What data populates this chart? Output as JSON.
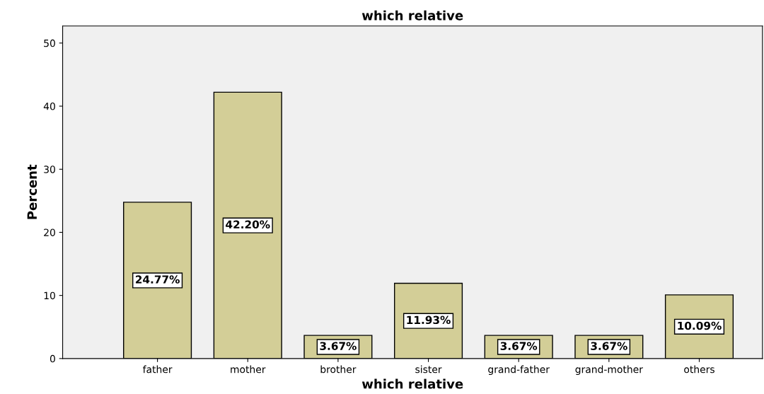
{
  "chart_data": {
    "type": "bar",
    "title": "which relative",
    "xlabel": "which relative",
    "ylabel": "Percent",
    "categories": [
      "father",
      "mother",
      "brother",
      "sister",
      "grand-father",
      "grand-mother",
      "others"
    ],
    "values": [
      24.77,
      42.2,
      3.67,
      11.93,
      3.67,
      3.67,
      10.09
    ],
    "value_labels": [
      "24.77%",
      "42.20%",
      "3.67%",
      "11.93%",
      "3.67%",
      "3.67%",
      "10.09%"
    ],
    "color": "#d3ce97",
    "ylim": [
      0,
      52.7
    ],
    "yticks": [
      0,
      10,
      20,
      30,
      40,
      50
    ],
    "grid": false,
    "legend": false
  }
}
